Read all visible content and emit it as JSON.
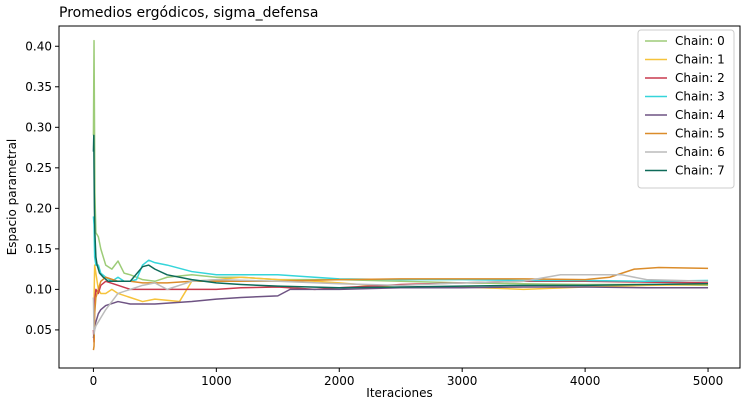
{
  "chart_data": {
    "type": "line",
    "title": "Promedios ergódicos, sigma_defensa",
    "xlabel": "Iteraciones",
    "ylabel": "Espacio parametral",
    "xlim": [
      -280,
      5260
    ],
    "ylim": [
      0.003,
      0.425
    ],
    "xticks": [
      0,
      1000,
      2000,
      3000,
      4000,
      5000
    ],
    "yticks": [
      0.05,
      0.1,
      0.15,
      0.2,
      0.25,
      0.3,
      0.35,
      0.4
    ],
    "ytick_labels": [
      "0.05",
      "0.10",
      "0.15",
      "0.20",
      "0.25",
      "0.30",
      "0.35",
      "0.40"
    ],
    "grid": false,
    "legend_position": "top-right",
    "series": [
      {
        "name": "Chain: 0",
        "color": "#9dcc78",
        "x": [
          0,
          5,
          12,
          20,
          40,
          60,
          100,
          150,
          200,
          250,
          300,
          350,
          400,
          500,
          600,
          800,
          1000,
          1200,
          1500,
          1800,
          2000,
          2500,
          3000,
          3500,
          4000,
          4500,
          5000
        ],
        "y": [
          0.29,
          0.407,
          0.22,
          0.17,
          0.165,
          0.15,
          0.13,
          0.125,
          0.135,
          0.12,
          0.118,
          0.115,
          0.112,
          0.11,
          0.115,
          0.118,
          0.115,
          0.115,
          0.112,
          0.112,
          0.112,
          0.11,
          0.108,
          0.107,
          0.106,
          0.106,
          0.105
        ]
      },
      {
        "name": "Chain: 1",
        "color": "#f6c33b",
        "x": [
          0,
          5,
          10,
          20,
          40,
          60,
          100,
          150,
          200,
          300,
          400,
          500,
          700,
          800,
          1000,
          1200,
          1500,
          1800,
          2000,
          2500,
          3000,
          3500,
          4000,
          4500,
          5000
        ],
        "y": [
          0.09,
          0.085,
          0.13,
          0.12,
          0.1,
          0.095,
          0.095,
          0.1,
          0.095,
          0.09,
          0.085,
          0.088,
          0.085,
          0.11,
          0.112,
          0.115,
          0.112,
          0.11,
          0.108,
          0.102,
          0.103,
          0.1,
          0.103,
          0.105,
          0.106
        ]
      },
      {
        "name": "Chain: 2",
        "color": "#c93a4e",
        "x": [
          0,
          5,
          10,
          20,
          40,
          60,
          100,
          200,
          300,
          400,
          500,
          800,
          1000,
          1200,
          1500,
          1800,
          2000,
          2500,
          3000,
          3500,
          4000,
          4500,
          5000
        ],
        "y": [
          0.05,
          0.035,
          0.085,
          0.1,
          0.095,
          0.105,
          0.11,
          0.105,
          0.1,
          0.1,
          0.1,
          0.1,
          0.1,
          0.102,
          0.103,
          0.1,
          0.102,
          0.106,
          0.108,
          0.11,
          0.11,
          0.109,
          0.108
        ]
      },
      {
        "name": "Chain: 3",
        "color": "#35d5da",
        "x": [
          0,
          5,
          10,
          20,
          40,
          60,
          100,
          150,
          200,
          250,
          300,
          350,
          400,
          450,
          500,
          600,
          800,
          1000,
          1200,
          1500,
          1800,
          2000,
          2500,
          3000,
          3500,
          4000,
          4500,
          5000
        ],
        "y": [
          0.19,
          0.18,
          0.14,
          0.13,
          0.13,
          0.12,
          0.115,
          0.11,
          0.115,
          0.11,
          0.11,
          0.112,
          0.13,
          0.136,
          0.133,
          0.13,
          0.122,
          0.118,
          0.118,
          0.118,
          0.115,
          0.113,
          0.112,
          0.112,
          0.111,
          0.111,
          0.11,
          0.111
        ]
      },
      {
        "name": "Chain: 4",
        "color": "#6e5383",
        "x": [
          0,
          5,
          10,
          20,
          40,
          60,
          100,
          200,
          300,
          500,
          800,
          1000,
          1200,
          1500,
          1600,
          1800,
          2000,
          2500,
          3000,
          3500,
          4000,
          4500,
          5000
        ],
        "y": [
          0.04,
          0.045,
          0.055,
          0.06,
          0.07,
          0.075,
          0.08,
          0.085,
          0.082,
          0.082,
          0.085,
          0.088,
          0.09,
          0.092,
          0.1,
          0.1,
          0.1,
          0.102,
          0.102,
          0.103,
          0.103,
          0.102,
          0.102
        ]
      },
      {
        "name": "Chain: 5",
        "color": "#db8c2a",
        "x": [
          0,
          5,
          10,
          20,
          40,
          60,
          100,
          200,
          300,
          400,
          600,
          800,
          1000,
          1200,
          1500,
          2000,
          2500,
          3000,
          3500,
          4000,
          4200,
          4400,
          4600,
          5000
        ],
        "y": [
          0.025,
          0.03,
          0.07,
          0.09,
          0.1,
          0.11,
          0.115,
          0.11,
          0.11,
          0.108,
          0.108,
          0.11,
          0.11,
          0.11,
          0.11,
          0.112,
          0.113,
          0.113,
          0.113,
          0.112,
          0.115,
          0.125,
          0.127,
          0.126
        ]
      },
      {
        "name": "Chain: 6",
        "color": "#bcbcbc",
        "x": [
          0,
          5,
          10,
          20,
          40,
          60,
          100,
          150,
          200,
          300,
          400,
          500,
          600,
          800,
          1000,
          1500,
          2000,
          2500,
          3000,
          3500,
          3800,
          4000,
          4300,
          4500,
          5000
        ],
        "y": [
          0.09,
          0.045,
          0.05,
          0.055,
          0.06,
          0.065,
          0.075,
          0.085,
          0.095,
          0.1,
          0.105,
          0.108,
          0.1,
          0.11,
          0.112,
          0.11,
          0.107,
          0.105,
          0.108,
          0.11,
          0.118,
          0.118,
          0.118,
          0.112,
          0.11
        ]
      },
      {
        "name": "Chain: 7",
        "color": "#0e6a59",
        "x": [
          0,
          3,
          5,
          8,
          12,
          20,
          30,
          50,
          80,
          120,
          200,
          300,
          400,
          450,
          500,
          600,
          800,
          1000,
          1200,
          1500,
          2000,
          2500,
          3000,
          3500,
          4000,
          4500,
          5000
        ],
        "y": [
          0.27,
          0.29,
          0.25,
          0.2,
          0.17,
          0.14,
          0.13,
          0.12,
          0.115,
          0.11,
          0.11,
          0.11,
          0.128,
          0.13,
          0.125,
          0.118,
          0.112,
          0.108,
          0.106,
          0.104,
          0.102,
          0.103,
          0.104,
          0.105,
          0.105,
          0.106,
          0.107
        ]
      }
    ]
  }
}
